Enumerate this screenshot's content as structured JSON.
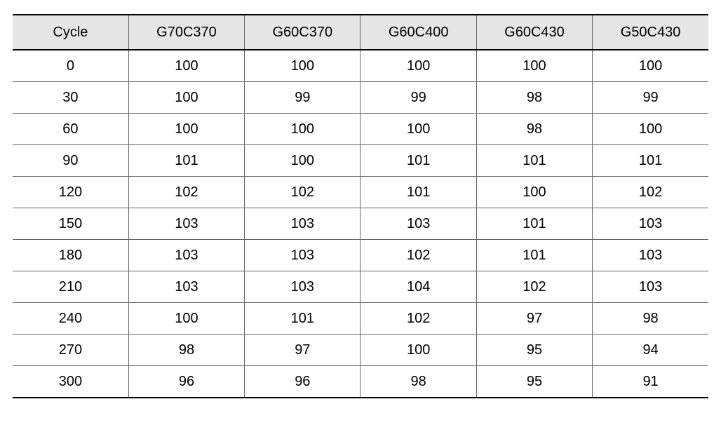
{
  "table": {
    "type": "table",
    "columns": [
      "Cycle",
      "G70C370",
      "G60C370",
      "G60C400",
      "G60C430",
      "G50C430"
    ],
    "rows": [
      [
        "0",
        "100",
        "100",
        "100",
        "100",
        "100"
      ],
      [
        "30",
        "100",
        "99",
        "99",
        "98",
        "99"
      ],
      [
        "60",
        "100",
        "100",
        "100",
        "98",
        "100"
      ],
      [
        "90",
        "101",
        "100",
        "101",
        "101",
        "101"
      ],
      [
        "120",
        "102",
        "102",
        "101",
        "100",
        "102"
      ],
      [
        "150",
        "103",
        "103",
        "103",
        "101",
        "103"
      ],
      [
        "180",
        "103",
        "103",
        "102",
        "101",
        "103"
      ],
      [
        "210",
        "103",
        "103",
        "104",
        "102",
        "103"
      ],
      [
        "240",
        "100",
        "101",
        "102",
        "97",
        "98"
      ],
      [
        "270",
        "98",
        "97",
        "100",
        "95",
        "94"
      ],
      [
        "300",
        "96",
        "96",
        "98",
        "95",
        "91"
      ]
    ],
    "header_bg": "#e6e6e6",
    "border_color_outer": "#000000",
    "border_color_inner": "#666666",
    "font_size_pt": 15,
    "text_color": "#000000",
    "background_color": "#ffffff",
    "column_count": 6,
    "row_count": 11
  }
}
